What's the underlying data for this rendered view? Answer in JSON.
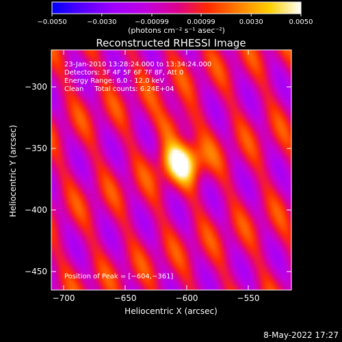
{
  "chart_data": {
    "type": "heatmap",
    "title": "Reconstructed RHESSI Image",
    "xlabel": "Heliocentric X (arcsec)",
    "ylabel": "Heliocentric Y (arcsec)",
    "xlim": [
      -710,
      -515
    ],
    "ylim": [
      -465,
      -270
    ],
    "xticks": [
      -700,
      -650,
      -600,
      -550
    ],
    "yticks": [
      -300,
      -350,
      -400,
      -450
    ],
    "xtick_labels": [
      "−700",
      "−650",
      "−600",
      "−550"
    ],
    "ytick_labels": [
      "−300",
      "−350",
      "−400",
      "−450"
    ],
    "colorbar": {
      "ticks": [
        -0.005,
        -0.003,
        -0.00099,
        0.00099,
        0.003,
        0.005
      ],
      "tick_labels": [
        "−0.0050",
        "−0.0030",
        "−0.00099",
        "0.00099",
        "0.0030",
        "0.0050"
      ],
      "unit_label": "(photons cm⁻² s⁻¹ asec⁻²)",
      "range": [
        -0.005,
        0.005
      ],
      "colortable": [
        "#0000ff",
        "#5a00ff",
        "#a000ff",
        "#c000e0",
        "#dd0090",
        "#ff2a00",
        "#ff8000",
        "#ffd000",
        "#ffffff"
      ]
    },
    "annotations": [
      "23-Jan-2010 13:28:24.000 to 13:34:24.000",
      "Detectors: 3F 4F 5F 6F 7F 8F, Att 0",
      "Energy Range: 6.0 - 12.0 keV",
      "Clean     Total counts: 6.24E+04"
    ],
    "peak_label": "Position of Peak = [−604,−361]",
    "peak": {
      "x": -604,
      "y": -361
    },
    "image_pattern": {
      "description_free_params": true,
      "stripe_slope": -0.55,
      "stripe_period_arcsec": 32,
      "source_center": [
        -604,
        -361
      ]
    }
  },
  "footer": {
    "date": "8-May-2022 17:27"
  }
}
